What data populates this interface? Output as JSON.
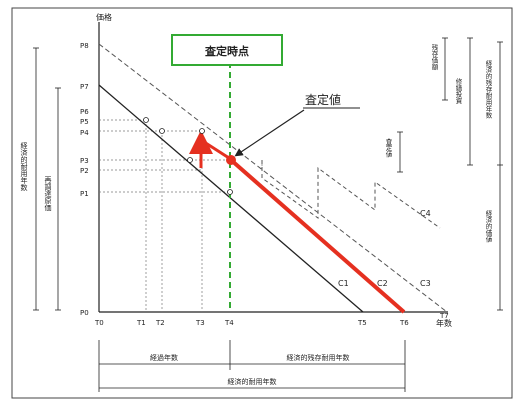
{
  "diagram": {
    "y_axis_title": "価格",
    "x_axis_title": "年数",
    "assessment_box_label": "査定時点",
    "assessed_value_label": "査定値",
    "y_ticks": [
      "P8",
      "P7",
      "P6",
      "P5",
      "P4",
      "P3",
      "P2",
      "P1",
      "P0"
    ],
    "x_ticks": [
      "T0",
      "T1",
      "T2",
      "T3",
      "T4",
      "T5",
      "T6",
      "T7"
    ],
    "curves": [
      "C1",
      "C2",
      "C3",
      "C4"
    ],
    "left_bracket_outer": "経済的耐用年数",
    "left_bracket_inner": "再調達原価",
    "right_bracket_top_1": "残存価額",
    "right_bracket_top_2": "経済的残存耐用年数",
    "right_bracket_mid": "修繕投資",
    "right_bracket_low": "経済的価値",
    "right_small_bracket": "査定値",
    "bottom_elapsed": "経過年数",
    "bottom_remaining": "経済的残存耐用年数",
    "bottom_total": "経済的耐用年数",
    "colors": {
      "accent_red": "#e53020",
      "assessment_green": "#33aa33",
      "line_black": "#222222",
      "dashed_gray": "#555555"
    }
  }
}
